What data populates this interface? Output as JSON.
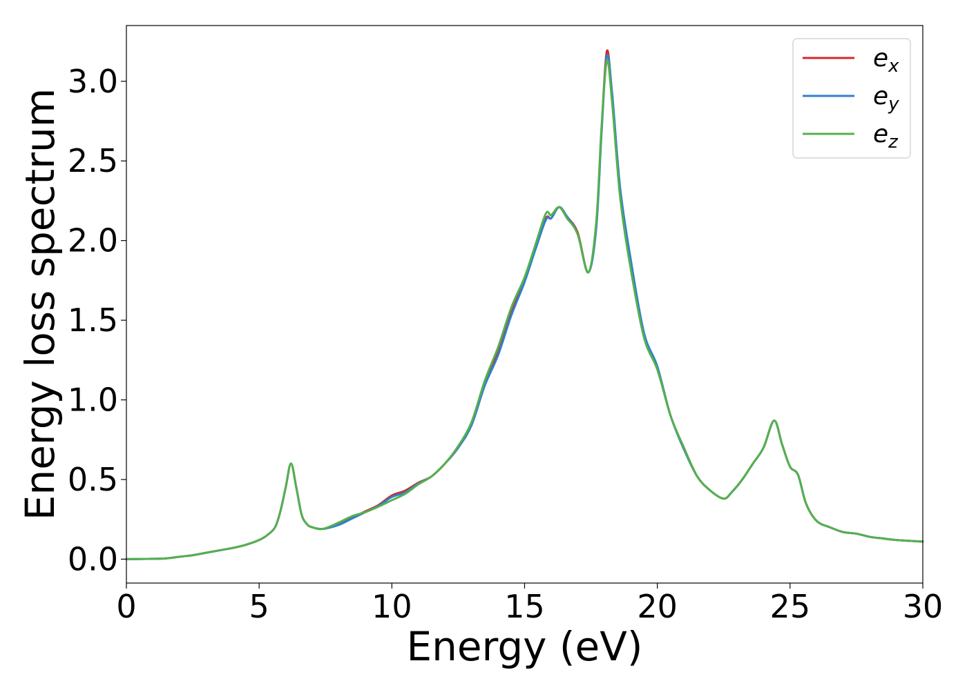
{
  "chart_data": {
    "type": "line",
    "xlabel": "Energy (eV)",
    "ylabel": "Energy loss spectrum",
    "xlim": [
      0,
      30
    ],
    "ylim": [
      -0.15,
      3.35
    ],
    "xticks": [
      0,
      5,
      10,
      15,
      20,
      25,
      30
    ],
    "xtick_labels": [
      "0",
      "5",
      "10",
      "15",
      "20",
      "25",
      "30"
    ],
    "yticks": [
      0.0,
      0.5,
      1.0,
      1.5,
      2.0,
      2.5,
      3.0
    ],
    "ytick_labels": [
      "0.0",
      "0.5",
      "1.0",
      "1.5",
      "2.0",
      "2.5",
      "3.0"
    ],
    "grid": false,
    "legend_position": "top-right",
    "series": [
      {
        "name": "e",
        "subscript": "x",
        "color": "#d62728",
        "x": [
          0,
          1,
          1.5,
          2,
          2.5,
          3,
          3.5,
          4,
          4.5,
          5,
          5.3,
          5.6,
          5.8,
          6.0,
          6.2,
          6.4,
          6.6,
          6.8,
          7.0,
          7.4,
          8.0,
          8.5,
          9.0,
          9.5,
          10.0,
          10.5,
          11.0,
          11.5,
          12.0,
          12.5,
          13.0,
          13.5,
          14.0,
          14.5,
          15.0,
          15.4,
          15.8,
          16.0,
          16.3,
          16.6,
          17.0,
          17.4,
          17.7,
          17.9,
          18.1,
          18.3,
          18.6,
          19.0,
          19.5,
          20.0,
          20.5,
          21.0,
          21.5,
          22.0,
          22.5,
          22.8,
          23.2,
          23.6,
          24.0,
          24.4,
          24.7,
          25.0,
          25.3,
          25.6,
          26.0,
          26.5,
          27.0,
          27.5,
          28.0,
          28.5,
          29.0,
          30.0
        ],
        "y": [
          0,
          0.002,
          0.005,
          0.015,
          0.025,
          0.04,
          0.055,
          0.07,
          0.09,
          0.12,
          0.15,
          0.2,
          0.3,
          0.45,
          0.6,
          0.45,
          0.28,
          0.22,
          0.2,
          0.19,
          0.22,
          0.26,
          0.3,
          0.34,
          0.4,
          0.43,
          0.48,
          0.52,
          0.6,
          0.7,
          0.85,
          1.1,
          1.3,
          1.55,
          1.75,
          1.95,
          2.14,
          2.14,
          2.21,
          2.15,
          2.05,
          1.8,
          2.1,
          2.7,
          3.19,
          2.9,
          2.3,
          1.85,
          1.4,
          1.2,
          0.9,
          0.7,
          0.52,
          0.43,
          0.38,
          0.42,
          0.5,
          0.6,
          0.7,
          0.87,
          0.72,
          0.58,
          0.53,
          0.35,
          0.24,
          0.2,
          0.17,
          0.16,
          0.14,
          0.13,
          0.12,
          0.11
        ]
      },
      {
        "name": "e",
        "subscript": "y",
        "color": "#2f7fd0",
        "x": [
          0,
          1,
          1.5,
          2,
          2.5,
          3,
          3.5,
          4,
          4.5,
          5,
          5.3,
          5.6,
          5.8,
          6.0,
          6.2,
          6.4,
          6.6,
          6.8,
          7.0,
          7.4,
          8.0,
          8.5,
          9.0,
          9.5,
          10.0,
          10.5,
          11.0,
          11.5,
          12.0,
          12.5,
          13.0,
          13.5,
          14.0,
          14.5,
          15.0,
          15.4,
          15.8,
          16.0,
          16.3,
          16.6,
          17.0,
          17.4,
          17.7,
          17.9,
          18.1,
          18.3,
          18.6,
          19.0,
          19.5,
          20.0,
          20.5,
          21.0,
          21.5,
          22.0,
          22.5,
          22.8,
          23.2,
          23.6,
          24.0,
          24.4,
          24.7,
          25.0,
          25.3,
          25.6,
          26.0,
          26.5,
          27.0,
          27.5,
          28.0,
          28.5,
          29.0,
          30.0
        ],
        "y": [
          0,
          0.002,
          0.005,
          0.015,
          0.025,
          0.04,
          0.055,
          0.07,
          0.09,
          0.12,
          0.15,
          0.2,
          0.3,
          0.45,
          0.6,
          0.45,
          0.28,
          0.22,
          0.2,
          0.19,
          0.215,
          0.255,
          0.295,
          0.335,
          0.39,
          0.42,
          0.475,
          0.52,
          0.6,
          0.7,
          0.84,
          1.09,
          1.28,
          1.53,
          1.74,
          1.94,
          2.13,
          2.14,
          2.21,
          2.15,
          2.04,
          1.8,
          2.08,
          2.68,
          3.16,
          2.92,
          2.33,
          1.88,
          1.42,
          1.21,
          0.9,
          0.69,
          0.52,
          0.43,
          0.38,
          0.42,
          0.5,
          0.6,
          0.7,
          0.87,
          0.72,
          0.58,
          0.53,
          0.35,
          0.24,
          0.2,
          0.17,
          0.16,
          0.14,
          0.13,
          0.12,
          0.11
        ]
      },
      {
        "name": "e",
        "subscript": "z",
        "color": "#55b04e",
        "x": [
          0,
          1,
          1.5,
          2,
          2.5,
          3,
          3.5,
          4,
          4.5,
          5,
          5.3,
          5.6,
          5.8,
          6.0,
          6.2,
          6.4,
          6.6,
          6.8,
          7.0,
          7.4,
          8.0,
          8.5,
          9.0,
          9.5,
          10.0,
          10.5,
          11.0,
          11.5,
          12.0,
          12.5,
          13.0,
          13.5,
          14.0,
          14.5,
          15.0,
          15.4,
          15.8,
          16.0,
          16.3,
          16.6,
          17.0,
          17.4,
          17.7,
          17.9,
          18.1,
          18.3,
          18.6,
          19.0,
          19.5,
          20.0,
          20.5,
          21.0,
          21.5,
          22.0,
          22.5,
          22.8,
          23.2,
          23.6,
          24.0,
          24.4,
          24.7,
          25.0,
          25.3,
          25.6,
          26.0,
          26.5,
          27.0,
          27.5,
          28.0,
          28.5,
          29.0,
          30.0
        ],
        "y": [
          0,
          0.002,
          0.005,
          0.015,
          0.025,
          0.04,
          0.055,
          0.07,
          0.09,
          0.12,
          0.15,
          0.2,
          0.3,
          0.45,
          0.6,
          0.45,
          0.28,
          0.22,
          0.2,
          0.19,
          0.23,
          0.27,
          0.295,
          0.33,
          0.37,
          0.41,
          0.47,
          0.52,
          0.6,
          0.71,
          0.86,
          1.12,
          1.33,
          1.58,
          1.77,
          1.97,
          2.17,
          2.16,
          2.21,
          2.14,
          2.04,
          1.8,
          2.12,
          2.72,
          3.13,
          2.86,
          2.27,
          1.82,
          1.39,
          1.19,
          0.9,
          0.7,
          0.52,
          0.43,
          0.38,
          0.42,
          0.5,
          0.6,
          0.7,
          0.87,
          0.72,
          0.58,
          0.53,
          0.35,
          0.24,
          0.2,
          0.17,
          0.16,
          0.14,
          0.13,
          0.12,
          0.11
        ]
      }
    ]
  }
}
